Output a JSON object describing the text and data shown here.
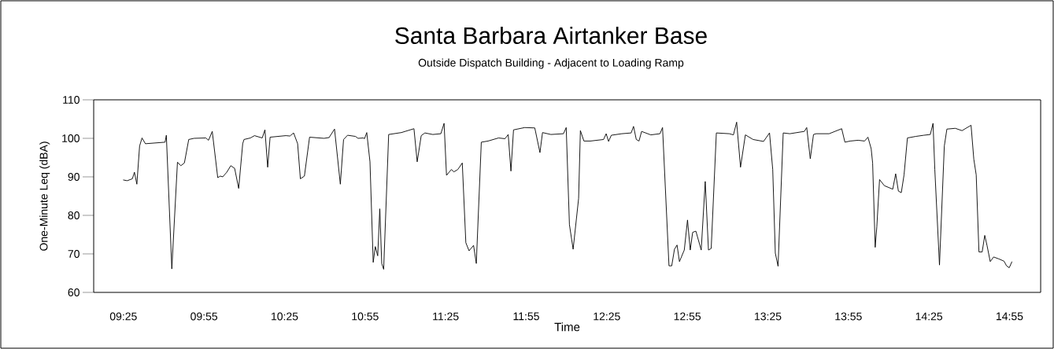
{
  "chart_data": {
    "type": "line",
    "title": "Santa Barbara Airtanker Base",
    "subtitle": "Outside Dispatch Building - Adjacent to Loading Ramp",
    "xlabel": "Time",
    "ylabel": "One-Minute Leq (dBA)",
    "x": [
      9.415,
      9.44,
      9.472,
      9.485,
      9.5,
      9.517,
      9.532,
      9.553,
      9.675,
      9.683,
      9.717,
      9.752,
      9.773,
      9.795,
      9.822,
      9.855,
      9.928,
      9.945,
      9.968,
      10.002,
      10.018,
      10.033,
      10.058,
      10.083,
      10.107,
      10.132,
      10.157,
      10.165,
      10.205,
      10.23,
      10.278,
      10.295,
      10.312,
      10.327,
      10.425,
      10.45,
      10.473,
      10.498,
      10.515,
      10.54,
      10.572,
      10.662,
      10.693,
      10.727,
      10.763,
      10.783,
      10.808,
      10.857,
      10.873,
      10.907,
      10.913,
      10.927,
      10.947,
      10.967,
      10.98,
      10.995,
      11.008,
      11.02,
      11.032,
      11.063,
      11.142,
      11.22,
      11.24,
      11.265,
      11.288,
      11.337,
      11.387,
      11.407,
      11.422,
      11.452,
      11.468,
      11.492,
      11.52,
      11.542,
      11.562,
      11.59,
      11.607,
      11.638,
      11.68,
      11.745,
      11.785,
      11.805,
      11.822,
      11.838,
      11.908,
      11.97,
      12.002,
      12.018,
      12.07,
      12.148,
      12.165,
      12.185,
      12.208,
      12.242,
      12.253,
      12.275,
      12.315,
      12.397,
      12.413,
      12.428,
      12.445,
      12.51,
      12.568,
      12.583,
      12.6,
      12.617,
      12.633,
      12.69,
      12.747,
      12.763,
      12.803,
      12.82,
      12.837,
      12.853,
      12.868,
      12.898,
      12.918,
      12.935,
      12.95,
      12.97,
      13.003,
      13.028,
      13.048,
      13.065,
      13.097,
      13.178,
      13.203,
      13.223,
      13.247,
      13.277,
      13.325,
      13.39,
      13.427,
      13.447,
      13.463,
      13.48,
      13.512,
      13.553,
      13.643,
      13.658,
      13.68,
      13.7,
      13.717,
      13.797,
      13.875,
      13.895,
      13.928,
      13.977,
      14.017,
      14.038,
      14.058,
      14.067,
      14.083,
      14.093,
      14.11,
      14.14,
      14.192,
      14.21,
      14.227,
      14.245,
      14.262,
      14.283,
      14.335,
      14.385,
      14.425,
      14.442,
      14.453,
      14.482,
      14.512,
      14.528,
      14.58,
      14.622,
      14.678,
      14.695,
      14.71,
      14.727,
      14.747,
      14.763,
      14.777,
      14.797,
      14.818,
      14.85,
      14.883,
      14.898,
      14.915,
      14.932
    ],
    "series": [
      {
        "color": "#000000",
        "values": [
          89.2,
          89,
          89.5,
          91.2,
          88.1,
          98,
          100.1,
          98.6,
          99,
          100.8,
          66.1,
          93.8,
          92.9,
          93.6,
          99.7,
          100,
          100.1,
          99.5,
          101.8,
          89.8,
          90.2,
          90,
          91.2,
          92.9,
          92.2,
          87,
          98.6,
          99.7,
          100.1,
          100.7,
          100.1,
          102.2,
          92.5,
          100.3,
          100.7,
          100.6,
          101.4,
          98.6,
          89.5,
          90.2,
          100.3,
          100,
          100.2,
          102.4,
          88.1,
          99.7,
          100.8,
          100.5,
          100,
          100.1,
          99.9,
          101.5,
          93.9,
          67.8,
          71.9,
          69.5,
          81.7,
          67.5,
          66,
          101,
          101.5,
          102.5,
          93.9,
          100.7,
          101.4,
          101,
          101.2,
          103.9,
          90.4,
          91.9,
          91.3,
          91.9,
          93.6,
          72.9,
          70.8,
          72.2,
          67.5,
          99,
          99.3,
          100.1,
          99.9,
          101,
          91.5,
          102.2,
          102.8,
          102.7,
          96.3,
          101.5,
          101,
          101.2,
          102.8,
          77.6,
          71.2,
          84.4,
          102,
          99.3,
          99.3,
          99.7,
          101.2,
          99.2,
          100.8,
          101.2,
          101.4,
          103.1,
          99.7,
          99.3,
          101.8,
          100.9,
          101.2,
          102.8,
          66.9,
          66.9,
          71.2,
          72.3,
          68,
          71,
          78.8,
          71,
          75.6,
          75.9,
          71,
          88.8,
          71,
          71.4,
          101.4,
          101.2,
          100.9,
          104.2,
          92.5,
          100.9,
          99.7,
          99.2,
          101.4,
          91.9,
          70.2,
          66.8,
          101.4,
          101.2,
          101.8,
          102.8,
          94.7,
          101,
          101.2,
          101.2,
          102.5,
          99,
          99.3,
          99.5,
          99.3,
          100.3,
          97.3,
          93.6,
          71.7,
          77,
          89.3,
          87.7,
          86.8,
          90.8,
          86.3,
          85.9,
          90.5,
          100.1,
          100.5,
          100.8,
          101,
          103.9,
          91.9,
          67.1,
          98,
          102.4,
          102.6,
          102,
          103.4,
          94.6,
          90.5,
          70.5,
          70.5,
          74.8,
          72.2,
          68,
          69.2,
          68.7,
          68.1,
          66.9,
          66.4,
          68
        ]
      }
    ],
    "xlim": [
      9.232,
      15.11
    ],
    "ylim": [
      60,
      110
    ],
    "xticks": [
      {
        "value": 9.4167,
        "label": "09:25"
      },
      {
        "value": 9.9167,
        "label": "09:55"
      },
      {
        "value": 10.4167,
        "label": "10:25"
      },
      {
        "value": 10.9167,
        "label": "10:55"
      },
      {
        "value": 11.4167,
        "label": "11:25"
      },
      {
        "value": 11.9167,
        "label": "11:55"
      },
      {
        "value": 12.4167,
        "label": "12:25"
      },
      {
        "value": 12.9167,
        "label": "12:55"
      },
      {
        "value": 13.4167,
        "label": "13:25"
      },
      {
        "value": 13.9167,
        "label": "13:55"
      },
      {
        "value": 14.4167,
        "label": "14:25"
      },
      {
        "value": 14.9167,
        "label": "14:55"
      }
    ],
    "yticks": [
      60,
      70,
      80,
      90,
      100,
      110
    ],
    "grid": false,
    "marker": "none",
    "line_style": "solid"
  }
}
